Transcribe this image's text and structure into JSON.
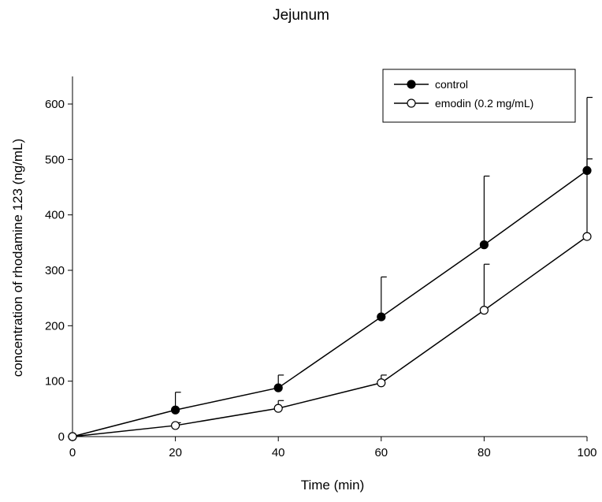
{
  "chart_data": {
    "type": "line",
    "title": "Jejunum",
    "xlabel": "Time (min)",
    "ylabel": "concentration of rhodamine 123 (ng/mL)",
    "xlim": [
      0,
      100
    ],
    "ylim": [
      0,
      650
    ],
    "x_ticks": [
      0,
      20,
      40,
      60,
      80,
      100
    ],
    "y_ticks": [
      0,
      100,
      200,
      300,
      400,
      500,
      600
    ],
    "x_tick_labels": [
      "0",
      "20",
      "40",
      "60",
      "80",
      "100"
    ],
    "y_tick_labels": [
      "0",
      "100",
      "200",
      "300",
      "400",
      "500",
      "600"
    ],
    "grid": false,
    "legend_position": "top-right",
    "series": [
      {
        "name": "control",
        "marker": "filled-circle",
        "color": "#000000",
        "x": [
          0,
          20,
          40,
          60,
          80,
          100
        ],
        "y": [
          0,
          48,
          88,
          216,
          346,
          480
        ],
        "error_upper": [
          0,
          80,
          111,
          288,
          470,
          612
        ]
      },
      {
        "name": "emodin (0.2 mg/mL)",
        "marker": "open-circle",
        "color": "#000000",
        "x": [
          0,
          20,
          40,
          60,
          80,
          100
        ],
        "y": [
          0,
          20,
          51,
          97,
          228,
          361
        ],
        "error_upper": [
          0,
          25,
          65,
          111,
          311,
          501
        ]
      }
    ]
  }
}
